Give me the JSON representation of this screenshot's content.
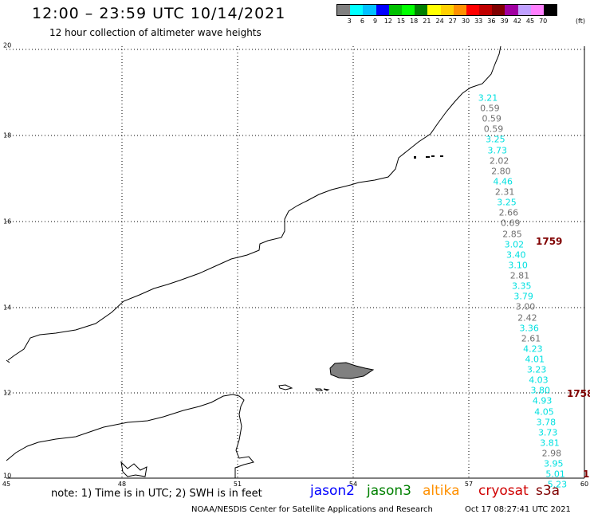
{
  "title": "12:00 – 23:59 UTC 10/14/2021",
  "subtitle": "12 hour collection of altimeter wave heights",
  "color_scale": {
    "colors": [
      "#808080",
      "#00ffff",
      "#00c0ff",
      "#0000ff",
      "#00c000",
      "#00ff00",
      "#008000",
      "#ffff00",
      "#ffd000",
      "#ff9000",
      "#ff0000",
      "#c00000",
      "#800000",
      "#a000a0",
      "#c0a0ff",
      "#ff80ff",
      "#000000"
    ],
    "labels": [
      "3",
      "6",
      "9",
      "12",
      "15",
      "18",
      "21",
      "24",
      "27",
      "30",
      "33",
      "36",
      "39",
      "42",
      "45",
      "70"
    ],
    "unit": "(ft)"
  },
  "axes": {
    "lon_labels": [
      "45",
      "48",
      "51",
      "54",
      "57",
      "60"
    ],
    "lat_labels": [
      "20",
      "18",
      "16",
      "14",
      "12",
      "10"
    ]
  },
  "note": "note: 1) Time is in UTC; 2) SWH is in feet",
  "satellites": [
    {
      "name": "jason2",
      "color": "#0000ff"
    },
    {
      "name": "jason3",
      "color": "#008000"
    },
    {
      "name": "altika",
      "color": "#ff9000"
    },
    {
      "name": "cryosat",
      "color": "#d00000"
    },
    {
      "name": "s3a",
      "color": "#800000"
    }
  ],
  "footer": {
    "credit": "NOAA/NESDIS Center for Satellite Applications and Research",
    "timestamp": "Oct 17 08:27:41 UTC 2021"
  },
  "track_times": [
    "1759",
    "1758",
    "1"
  ],
  "wave_heights": [
    {
      "value": "3.21",
      "color": "#00e0e0"
    },
    {
      "value": "0.59",
      "color": "#707070"
    },
    {
      "value": "0.59",
      "color": "#707070"
    },
    {
      "value": "0.59",
      "color": "#707070"
    },
    {
      "value": "3.25",
      "color": "#00e0e0"
    },
    {
      "value": "3.73",
      "color": "#00e0e0"
    },
    {
      "value": "2.02",
      "color": "#707070"
    },
    {
      "value": "2.80",
      "color": "#707070"
    },
    {
      "value": "4.46",
      "color": "#00e0e0"
    },
    {
      "value": "2.31",
      "color": "#707070"
    },
    {
      "value": "3.25",
      "color": "#00e0e0"
    },
    {
      "value": "2.66",
      "color": "#707070"
    },
    {
      "value": "0.69",
      "color": "#707070"
    },
    {
      "value": "2.85",
      "color": "#707070"
    },
    {
      "value": "3.02",
      "color": "#00e0e0"
    },
    {
      "value": "3.40",
      "color": "#00e0e0"
    },
    {
      "value": "3.10",
      "color": "#00e0e0"
    },
    {
      "value": "2.81",
      "color": "#707070"
    },
    {
      "value": "3.35",
      "color": "#00e0e0"
    },
    {
      "value": "3.79",
      "color": "#00e0e0"
    },
    {
      "value": "3.00",
      "color": "#707070"
    },
    {
      "value": "2.42",
      "color": "#707070"
    },
    {
      "value": "3.36",
      "color": "#00e0e0"
    },
    {
      "value": "2.61",
      "color": "#707070"
    },
    {
      "value": "4.23",
      "color": "#00e0e0"
    },
    {
      "value": "4.01",
      "color": "#00e0e0"
    },
    {
      "value": "3.23",
      "color": "#00e0e0"
    },
    {
      "value": "4.03",
      "color": "#00e0e0"
    },
    {
      "value": "3.80",
      "color": "#00e0e0"
    },
    {
      "value": "4.93",
      "color": "#00e0e0"
    },
    {
      "value": "4.05",
      "color": "#00e0e0"
    },
    {
      "value": "3.78",
      "color": "#00e0e0"
    },
    {
      "value": "3.73",
      "color": "#00e0e0"
    },
    {
      "value": "3.81",
      "color": "#00e0e0"
    },
    {
      "value": "2.98",
      "color": "#707070"
    },
    {
      "value": "3.95",
      "color": "#00e0e0"
    },
    {
      "value": "5.01",
      "color": "#00e0e0"
    },
    {
      "value": "5.23",
      "color": "#00e0e0"
    }
  ]
}
